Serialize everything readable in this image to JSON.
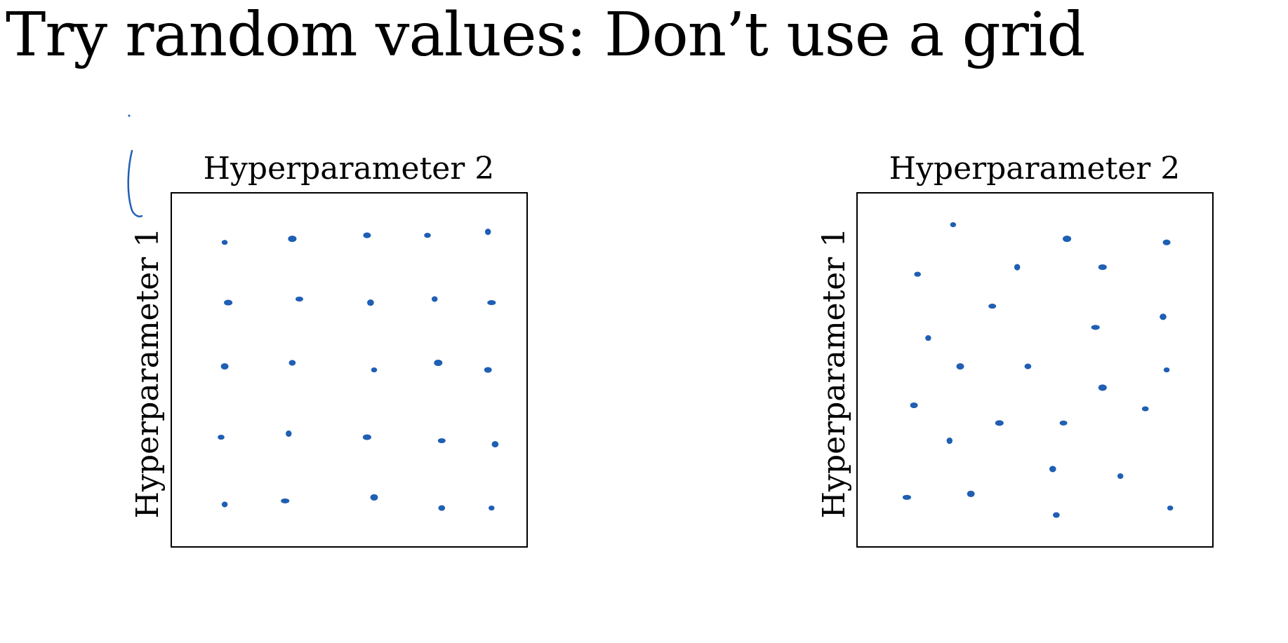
{
  "slide": {
    "title": "Try random values: Don’t use a grid"
  },
  "colors": {
    "ink": "#1f5fb4",
    "frame": "#000000"
  },
  "chart_data": [
    {
      "type": "scatter",
      "title": "",
      "xlabel": "Hyperparameter 2",
      "ylabel": "Hyperparameter 1",
      "xlim": [
        0,
        1
      ],
      "ylim": [
        0,
        1
      ],
      "points": [
        {
          "x": 0.15,
          "y": 0.86
        },
        {
          "x": 0.34,
          "y": 0.87
        },
        {
          "x": 0.55,
          "y": 0.88
        },
        {
          "x": 0.72,
          "y": 0.88
        },
        {
          "x": 0.89,
          "y": 0.89
        },
        {
          "x": 0.16,
          "y": 0.69
        },
        {
          "x": 0.36,
          "y": 0.7
        },
        {
          "x": 0.56,
          "y": 0.69
        },
        {
          "x": 0.74,
          "y": 0.7
        },
        {
          "x": 0.9,
          "y": 0.69
        },
        {
          "x": 0.15,
          "y": 0.51
        },
        {
          "x": 0.34,
          "y": 0.52
        },
        {
          "x": 0.57,
          "y": 0.5
        },
        {
          "x": 0.75,
          "y": 0.52
        },
        {
          "x": 0.89,
          "y": 0.5
        },
        {
          "x": 0.14,
          "y": 0.31
        },
        {
          "x": 0.33,
          "y": 0.32
        },
        {
          "x": 0.55,
          "y": 0.31
        },
        {
          "x": 0.76,
          "y": 0.3
        },
        {
          "x": 0.91,
          "y": 0.29
        },
        {
          "x": 0.15,
          "y": 0.12
        },
        {
          "x": 0.32,
          "y": 0.13
        },
        {
          "x": 0.57,
          "y": 0.14
        },
        {
          "x": 0.76,
          "y": 0.11
        },
        {
          "x": 0.9,
          "y": 0.11
        }
      ]
    },
    {
      "type": "scatter",
      "title": "",
      "xlabel": "Hyperparameter 2",
      "ylabel": "Hyperparameter 1",
      "xlim": [
        0,
        1
      ],
      "ylim": [
        0,
        1
      ],
      "points": [
        {
          "x": 0.27,
          "y": 0.91
        },
        {
          "x": 0.59,
          "y": 0.87
        },
        {
          "x": 0.87,
          "y": 0.86
        },
        {
          "x": 0.17,
          "y": 0.77
        },
        {
          "x": 0.45,
          "y": 0.79
        },
        {
          "x": 0.69,
          "y": 0.79
        },
        {
          "x": 0.38,
          "y": 0.68
        },
        {
          "x": 0.86,
          "y": 0.65
        },
        {
          "x": 0.2,
          "y": 0.59
        },
        {
          "x": 0.67,
          "y": 0.62
        },
        {
          "x": 0.29,
          "y": 0.51
        },
        {
          "x": 0.48,
          "y": 0.51
        },
        {
          "x": 0.87,
          "y": 0.5
        },
        {
          "x": 0.69,
          "y": 0.45
        },
        {
          "x": 0.16,
          "y": 0.4
        },
        {
          "x": 0.81,
          "y": 0.39
        },
        {
          "x": 0.26,
          "y": 0.3
        },
        {
          "x": 0.4,
          "y": 0.35
        },
        {
          "x": 0.58,
          "y": 0.35
        },
        {
          "x": 0.55,
          "y": 0.22
        },
        {
          "x": 0.74,
          "y": 0.2
        },
        {
          "x": 0.14,
          "y": 0.14
        },
        {
          "x": 0.32,
          "y": 0.15
        },
        {
          "x": 0.56,
          "y": 0.09
        },
        {
          "x": 0.88,
          "y": 0.11
        }
      ]
    }
  ]
}
